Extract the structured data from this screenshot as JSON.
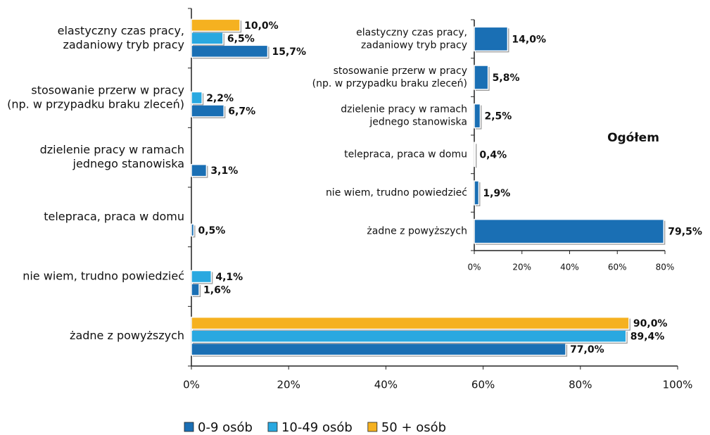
{
  "chart_data": [
    {
      "type": "bar",
      "orientation": "horizontal",
      "categories": [
        [
          "elastyczny czas pracy,",
          "zadaniowy tryb pracy"
        ],
        [
          "stosowanie przerw w pracy",
          "(np. w przypadku braku zleceń)"
        ],
        [
          "dzielenie pracy w ramach",
          "jednego stanowiska"
        ],
        [
          "telepraca, praca w domu"
        ],
        [
          "nie wiem, trudno powiedzieć"
        ],
        [
          "żadne z powyższych"
        ]
      ],
      "series": [
        {
          "name": "0-9 osób",
          "color": "#1a6fb4",
          "values": [
            15.7,
            6.7,
            3.1,
            0.5,
            1.6,
            77.0
          ],
          "value_labels": [
            "15,7%",
            "6,7%",
            "3,1%",
            "0,5%",
            "1,6%",
            "77,0%"
          ]
        },
        {
          "name": "10-49 osób",
          "color": "#29a8e0",
          "values": [
            6.5,
            2.2,
            null,
            null,
            4.1,
            89.4
          ],
          "value_labels": [
            "6,5%",
            "2,2%",
            null,
            null,
            "4,1%",
            "89,4%"
          ]
        },
        {
          "name": "50 + osób",
          "color": "#f5b120",
          "values": [
            10.0,
            null,
            null,
            null,
            null,
            90.0
          ],
          "value_labels": [
            "10,0%",
            null,
            null,
            null,
            null,
            "90,0%"
          ]
        }
      ],
      "xlim": [
        0,
        100
      ],
      "xticks": [
        {
          "value": 0,
          "label": "0%"
        },
        {
          "value": 20,
          "label": "20%"
        },
        {
          "value": 40,
          "label": "40%"
        },
        {
          "value": 60,
          "label": "60%"
        },
        {
          "value": 80,
          "label": "80%"
        },
        {
          "value": 100,
          "label": "100%"
        }
      ],
      "legend": "bottom"
    },
    {
      "type": "bar",
      "orientation": "horizontal",
      "title": "Ogółem",
      "categories": [
        [
          "elastyczny czas pracy,",
          "zadaniowy tryb pracy"
        ],
        [
          "stosowanie przerw w pracy",
          "(np. w przypadku braku zleceń)"
        ],
        [
          "dzielenie pracy w ramach",
          "jednego stanowiska"
        ],
        [
          "telepraca, praca w domu"
        ],
        [
          "nie wiem, trudno powiedzieć"
        ],
        [
          "żadne z powyższych"
        ]
      ],
      "values": [
        14.0,
        5.8,
        2.5,
        0.4,
        1.9,
        79.5
      ],
      "value_labels": [
        "14,0%",
        "5,8%",
        "2,5%",
        "0,4%",
        "1,9%",
        "79,5%"
      ],
      "color": "#1a6fb4",
      "xlim": [
        0,
        80
      ],
      "xticks": [
        {
          "value": 0,
          "label": "0%"
        },
        {
          "value": 20,
          "label": "20%"
        },
        {
          "value": 40,
          "label": "40%"
        },
        {
          "value": 60,
          "label": "60%"
        },
        {
          "value": 80,
          "label": "80%"
        }
      ]
    }
  ]
}
